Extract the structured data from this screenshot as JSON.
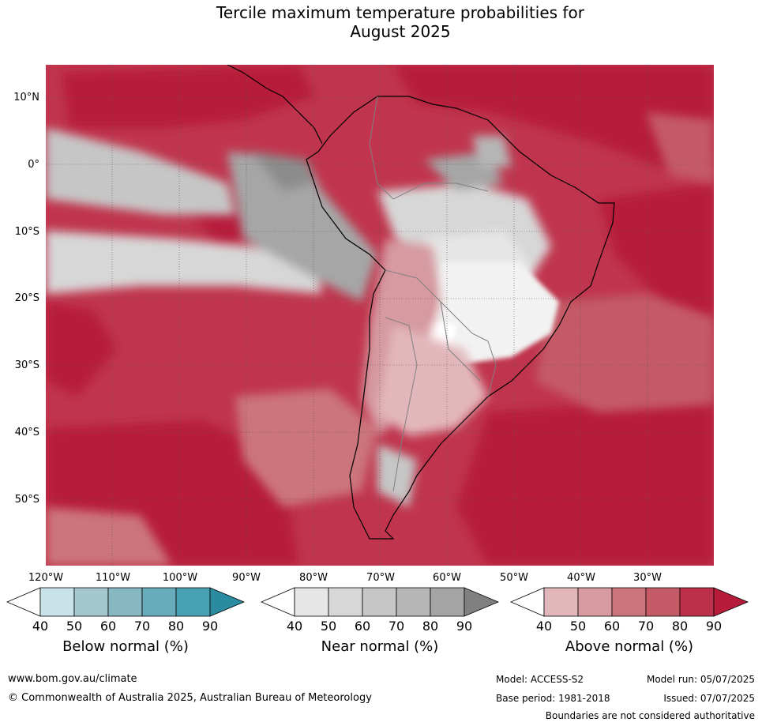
{
  "title_line1": "Tercile maximum temperature probabilities for",
  "title_line2": "August 2025",
  "map": {
    "lat_labels": [
      "10°N",
      "0°",
      "10°S",
      "20°S",
      "30°S",
      "40°S",
      "50°S"
    ],
    "lon_labels": [
      "120°W",
      "110°W",
      "100°W",
      "90°W",
      "80°W",
      "70°W",
      "60°W",
      "50°W",
      "40°W",
      "30°W"
    ],
    "colors": {
      "above_dominant": "#b81c3a",
      "near_normal": "#a6a6a6",
      "land_outline": "#000000",
      "border": "#808080"
    }
  },
  "colorbars": [
    {
      "name": "Below normal (%)",
      "ticks": [
        "40",
        "50",
        "60",
        "70",
        "80",
        "90"
      ],
      "colors": [
        "#ffffff",
        "#c8e2ea",
        "#a5c8cf",
        "#87b8c1",
        "#68abbb",
        "#49a2b3",
        "#2b8ba0"
      ]
    },
    {
      "name": "Near normal (%)",
      "ticks": [
        "40",
        "50",
        "60",
        "70",
        "80",
        "90"
      ],
      "colors": [
        "#ffffff",
        "#e6e6e6",
        "#d7d7d7",
        "#c6c6c6",
        "#b6b6b6",
        "#a5a5a5",
        "#808080"
      ]
    },
    {
      "name": "Above normal (%)",
      "ticks": [
        "40",
        "50",
        "60",
        "70",
        "80",
        "90"
      ],
      "colors": [
        "#ffffff",
        "#e2b7bc",
        "#d69aa0",
        "#cc747c",
        "#c45a66",
        "#bd3049",
        "#b71c3b"
      ]
    }
  ],
  "footer": {
    "url": "www.bom.gov.au/climate",
    "copyright": "© Commonwealth of Australia 2025, Australian Bureau of Meteorology",
    "model": "Model: ACCESS-S2",
    "base_period": "Base period: 1981-2018",
    "model_run": "Model run: 05/07/2025",
    "issued": "Issued: 07/07/2025",
    "disclaimer": "Boundaries are not considered authoritative"
  }
}
